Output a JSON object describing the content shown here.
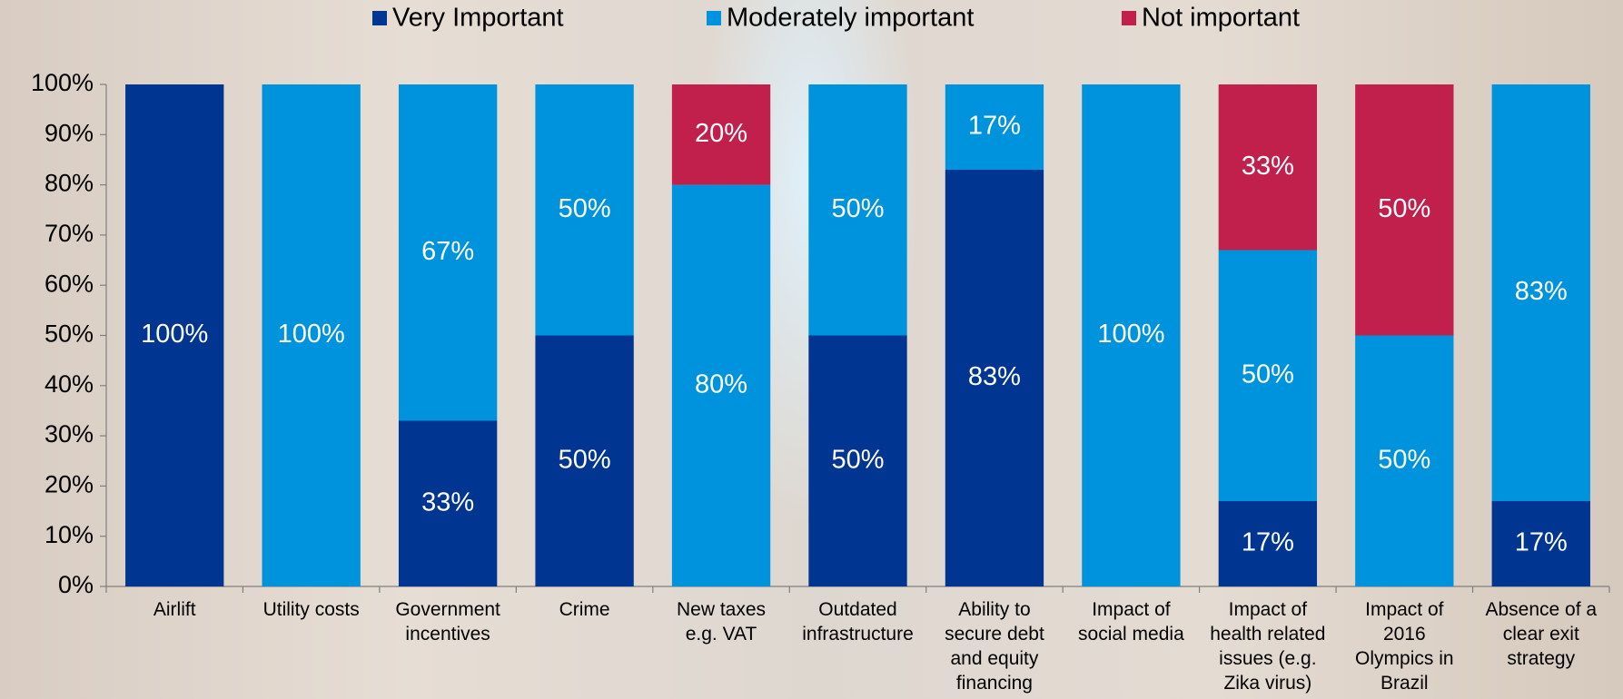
{
  "chart_data": {
    "type": "stacked_bar",
    "categories": [
      "Airlift",
      "Utility costs",
      "Government\nincentives",
      "Crime",
      "New taxes\ne.g. VAT",
      "Outdated\ninfrastructure",
      "Ability to\nsecure debt\nand equity\nfinancing",
      "Impact of\nsocial media",
      "Impact of\nhealth related\nissues (e.g.\nZika virus)",
      "Impact of\n2016\nOlympics in\nBrazil",
      "Absence of a\nclear exit\nstrategy"
    ],
    "series": [
      {
        "name": "Very Important",
        "color": "#003591",
        "values": [
          100,
          0,
          33,
          50,
          0,
          50,
          83,
          0,
          17,
          0,
          17
        ],
        "value_labels": [
          "100%",
          null,
          "33%",
          "50%",
          null,
          "50%",
          "83%",
          null,
          "17%",
          null,
          "17%"
        ]
      },
      {
        "name": "Moderately important",
        "color": "#0093dd",
        "values": [
          0,
          100,
          67,
          50,
          80,
          50,
          17,
          100,
          50,
          50,
          83
        ],
        "value_labels": [
          null,
          "100%",
          "67%",
          "50%",
          "80%",
          "50%",
          "17%",
          "100%",
          "50%",
          "50%",
          "83%"
        ]
      },
      {
        "name": "Not important",
        "color": "#c0204b",
        "values": [
          0,
          0,
          0,
          0,
          20,
          0,
          0,
          0,
          33,
          50,
          0
        ],
        "value_labels": [
          null,
          null,
          null,
          null,
          "20%",
          null,
          null,
          null,
          "33%",
          "50%",
          null
        ]
      }
    ],
    "ylim": [
      0,
      100
    ],
    "yticks": [
      {
        "value": 0,
        "label": "0%"
      },
      {
        "value": 10,
        "label": "10%"
      },
      {
        "value": 20,
        "label": "20%"
      },
      {
        "value": 30,
        "label": "30%"
      },
      {
        "value": 40,
        "label": "40%"
      },
      {
        "value": 50,
        "label": "50%"
      },
      {
        "value": 60,
        "label": "60%"
      },
      {
        "value": 70,
        "label": "70%"
      },
      {
        "value": 80,
        "label": "80%"
      },
      {
        "value": 90,
        "label": "90%"
      },
      {
        "value": 100,
        "label": "100%"
      }
    ],
    "legend": "top"
  }
}
